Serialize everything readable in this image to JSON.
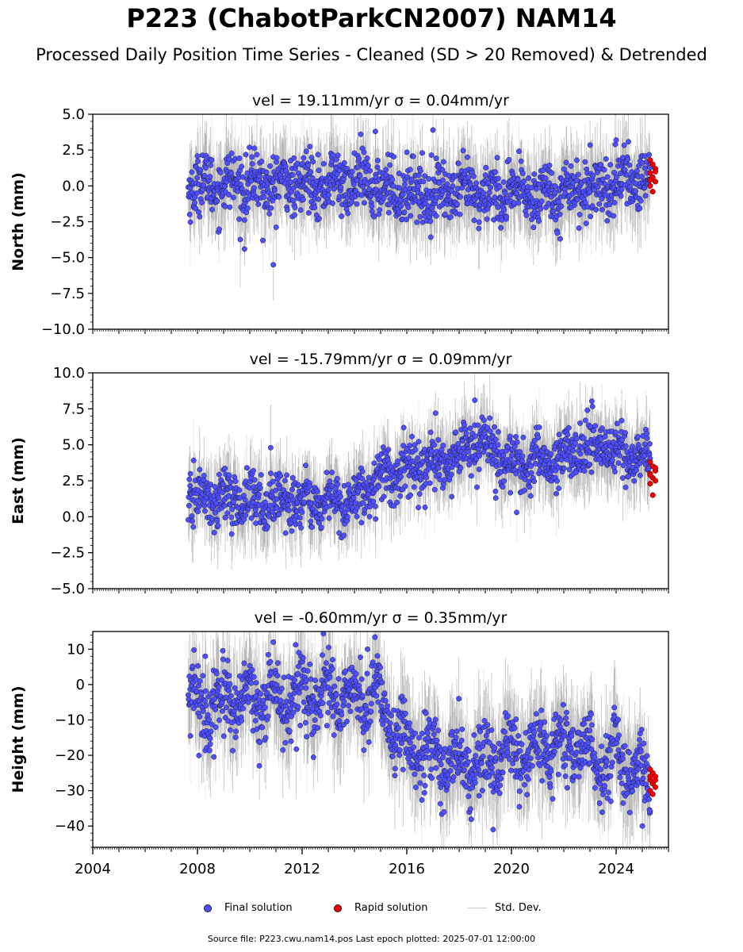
{
  "title": "P223 (ChabotParkCN2007) NAM14",
  "subtitle": "Processed Daily Position Time Series - Cleaned (SD > 20 Removed) & Detrended",
  "colors": {
    "final": "#4f4fff",
    "rapid": "#ee0000",
    "stddev": "#bbbbbb"
  },
  "legend": {
    "final": "Final solution",
    "rapid": "Rapid solution",
    "stddev": "Std. Dev."
  },
  "footer": "Source file: P223.cwu.nam14.pos  Last epoch plotted: 2025-07-01 12:00:00",
  "chart_data": [
    {
      "type": "scatter",
      "title": "vel = 19.11mm/yr   σ = 0.04mm/yr",
      "ylabel": "North (mm)",
      "xlim": [
        2004,
        2026
      ],
      "ylim": [
        -10,
        5
      ],
      "yticks": [
        5.0,
        2.5,
        0.0,
        -2.5,
        -5.0,
        -7.5,
        -10.0
      ],
      "ytick_labels": [
        "5.0",
        "2.5",
        "0.0",
        "−2.5",
        "−5.0",
        "−7.5",
        "−10.0"
      ],
      "x_start": 2007.65,
      "x_end": 2025.3,
      "rapid_range": [
        2025.3,
        2025.5
      ],
      "trend": [
        [
          2007.65,
          0.1
        ],
        [
          2014,
          0.2
        ],
        [
          2016,
          -0.4
        ],
        [
          2020,
          -0.6
        ],
        [
          2022,
          -0.4
        ],
        [
          2025.3,
          0.6
        ]
      ],
      "noise_sd": 1.0,
      "season_amp": 0.5,
      "outliers": [
        [
          2009.8,
          -4.4
        ],
        [
          2010.9,
          -5.5
        ],
        [
          2010.5,
          -3.8
        ],
        [
          2017.0,
          3.9
        ],
        [
          2014.8,
          3.8
        ],
        [
          2024.0,
          3.2
        ]
      ],
      "rapid_values": [
        1.8,
        1.5,
        1.2,
        0.9,
        0.6,
        0.3,
        0.0,
        -0.4,
        1.0,
        0.4
      ]
    },
    {
      "type": "scatter",
      "title": "vel = -15.79mm/yr   σ = 0.09mm/yr",
      "ylabel": "East (mm)",
      "xlim": [
        2004,
        2026
      ],
      "ylim": [
        -5,
        10
      ],
      "yticks": [
        10.0,
        7.5,
        5.0,
        2.5,
        0.0,
        -2.5,
        -5.0
      ],
      "ytick_labels": [
        "10.0",
        "7.5",
        "5.0",
        "2.5",
        "0.0",
        "−2.5",
        "−5.0"
      ],
      "x_start": 2007.65,
      "x_end": 2025.3,
      "rapid_range": [
        2025.3,
        2025.5
      ],
      "trend": [
        [
          2007.65,
          1.3
        ],
        [
          2012,
          1.0
        ],
        [
          2013.8,
          1.0
        ],
        [
          2015,
          2.8
        ],
        [
          2017,
          3.5
        ],
        [
          2018.8,
          5.2
        ],
        [
          2020,
          3.5
        ],
        [
          2022,
          4.0
        ],
        [
          2023,
          5.0
        ],
        [
          2025.3,
          3.8
        ]
      ],
      "noise_sd": 0.9,
      "season_amp": 0.5,
      "outliers": [
        [
          2018.6,
          8.1
        ],
        [
          2017.1,
          7.2
        ],
        [
          2022.9,
          7.4
        ],
        [
          2010.8,
          4.8
        ],
        [
          2019.4,
          1.3
        ],
        [
          2020.2,
          0.3
        ]
      ],
      "rapid_values": [
        3.8,
        3.5,
        3.2,
        3.0,
        2.7,
        2.5,
        2.3,
        1.5,
        3.4,
        2.9
      ]
    },
    {
      "type": "scatter",
      "title": "vel = -0.60mm/yr   σ = 0.35mm/yr",
      "ylabel": "Height (mm)",
      "xlim": [
        2004,
        2026
      ],
      "ylim": [
        -46,
        15
      ],
      "yticks": [
        10,
        0,
        -10,
        -20,
        -30,
        -40
      ],
      "ytick_labels": [
        "10",
        "0",
        "−10",
        "−20",
        "−30",
        "−40"
      ],
      "xticks": [
        2004,
        2008,
        2012,
        2016,
        2020,
        2024
      ],
      "xtick_labels": [
        "2004",
        "2008",
        "2012",
        "2016",
        "2020",
        "2024"
      ],
      "x_start": 2007.65,
      "x_end": 2025.3,
      "rapid_range": [
        2025.3,
        2025.5
      ],
      "trend": [
        [
          2007.65,
          -6
        ],
        [
          2014.8,
          -3
        ],
        [
          2016,
          -18
        ],
        [
          2018,
          -22
        ],
        [
          2020,
          -20
        ],
        [
          2022.5,
          -18
        ],
        [
          2025.3,
          -25
        ]
      ],
      "noise_sd": 5.0,
      "season_amp": 5.0,
      "outliers": [
        [
          2010.9,
          12
        ],
        [
          2008.3,
          8
        ],
        [
          2014.5,
          10
        ],
        [
          2019.3,
          -41
        ],
        [
          2025.0,
          -40
        ],
        [
          2023.8,
          -33
        ]
      ],
      "rapid_values": [
        -24,
        -25,
        -26,
        -27,
        -28,
        -29,
        -30,
        -31,
        -27,
        -26
      ]
    }
  ]
}
